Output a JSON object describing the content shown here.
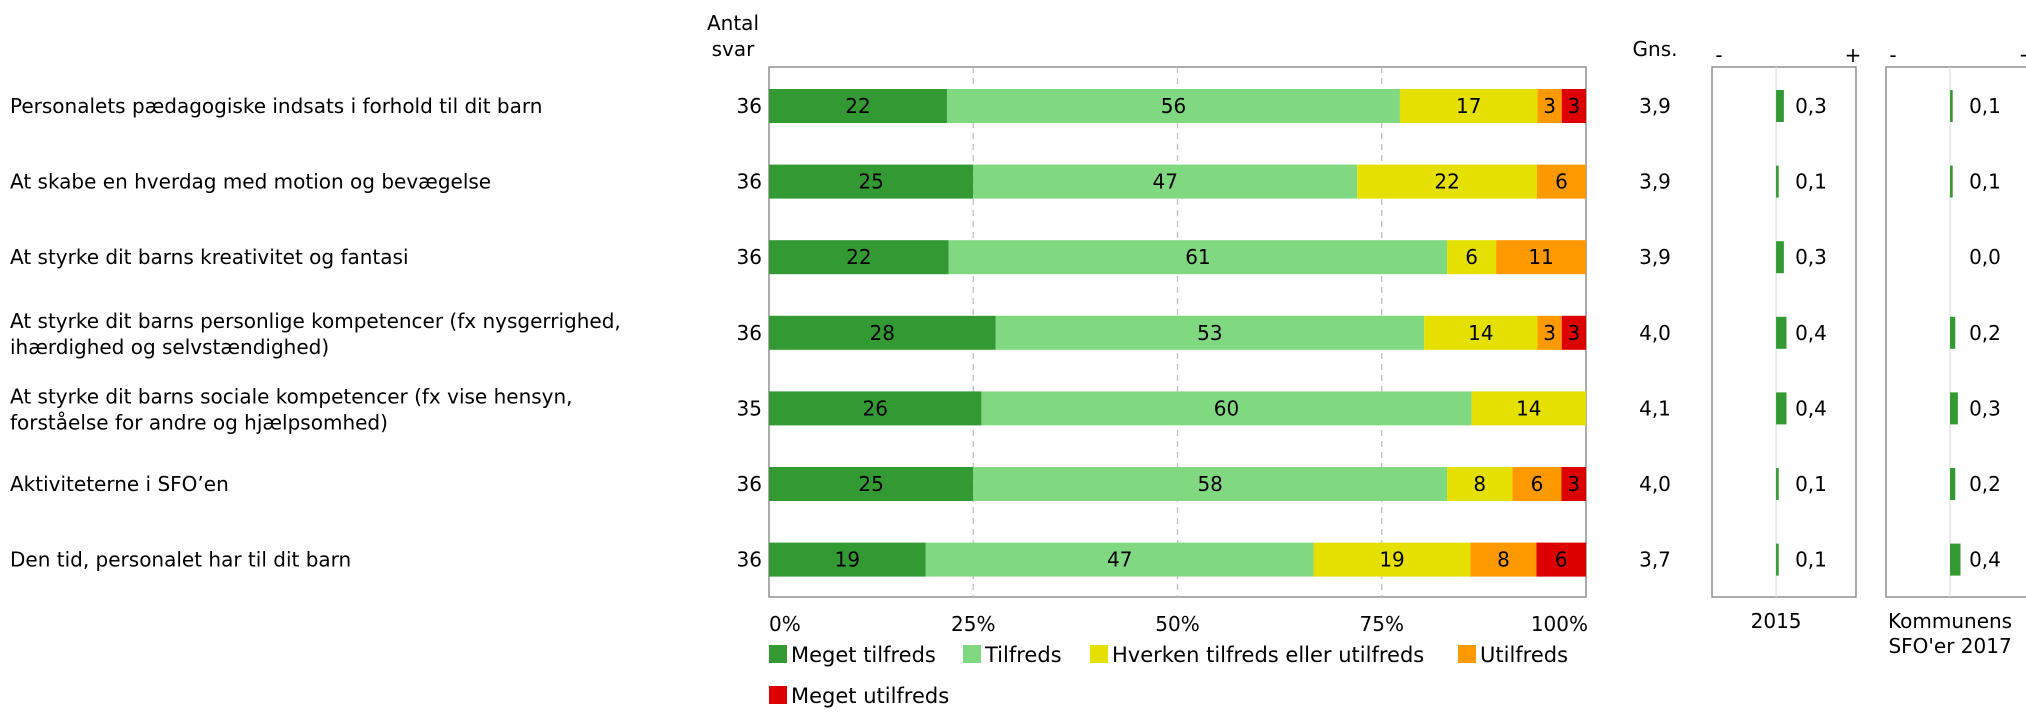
{
  "headers": {
    "count_line1": "Antal",
    "count_line2": "svar",
    "avg": "Gns.",
    "minus": "-",
    "plus": "+"
  },
  "colors": {
    "meget_tilfreds": "#339933",
    "tilfreds": "#80d880",
    "hverken": "#e6e000",
    "utilfreds": "#ff9900",
    "meget_utilfreds": "#dd0000",
    "grid": "#c0c0c0",
    "frame": "#808080"
  },
  "chart_data": [
    {
      "type": "bar",
      "stacked": true,
      "orientation": "horizontal",
      "xlim": [
        0,
        100
      ],
      "xticks": [
        "0%",
        "25%",
        "50%",
        "75%",
        "100%"
      ],
      "categories": [
        [
          "Personalets pædagogiske indsats i forhold til dit barn"
        ],
        [
          "At skabe en hverdag med motion og bevægelse"
        ],
        [
          "At styrke dit barns kreativitet og fantasi"
        ],
        [
          "At styrke dit barns personlige kompetencer (fx nysgerrighed,",
          "ihærdighed og selvstændighed)"
        ],
        [
          "At styrke dit barns sociale kompetencer (fx vise hensyn,",
          "forståelse for andre og hjælpsomhed)"
        ],
        [
          "Aktiviteterne i SFO’en"
        ],
        [
          "Den tid, personalet har til dit barn"
        ]
      ],
      "counts": [
        "36",
        "36",
        "36",
        "36",
        "35",
        "36",
        "36"
      ],
      "averages": [
        "3,9",
        "3,9",
        "3,9",
        "4,0",
        "4,1",
        "4,0",
        "3,7"
      ],
      "series": [
        {
          "name": "Meget tilfreds",
          "values": [
            22,
            25,
            22,
            28,
            26,
            25,
            19
          ]
        },
        {
          "name": "Tilfreds",
          "values": [
            56,
            47,
            61,
            53,
            60,
            58,
            47
          ]
        },
        {
          "name": "Hverken tilfreds eller utilfreds",
          "values": [
            17,
            22,
            6,
            14,
            14,
            8,
            19
          ]
        },
        {
          "name": "Utilfreds",
          "values": [
            3,
            6,
            11,
            3,
            0,
            6,
            8
          ]
        },
        {
          "name": "Meget utilfreds",
          "values": [
            3,
            0,
            0,
            3,
            0,
            3,
            6
          ]
        }
      ]
    },
    {
      "type": "bar",
      "orientation": "horizontal",
      "xlabel": "2015",
      "values": [
        0.3,
        0.1,
        0.3,
        0.4,
        0.4,
        0.1,
        0.1
      ],
      "labels": [
        "0,3",
        "0,1",
        "0,3",
        "0,4",
        "0,4",
        "0,1",
        "0,1"
      ]
    },
    {
      "type": "bar",
      "orientation": "horizontal",
      "xlabel": [
        "Kommunens",
        "SFO'er 2017"
      ],
      "values": [
        0.1,
        0.1,
        0.0,
        0.2,
        0.3,
        0.2,
        0.4
      ],
      "labels": [
        "0,1",
        "0,1",
        "0,0",
        "0,2",
        "0,3",
        "0,2",
        "0,4"
      ]
    }
  ]
}
